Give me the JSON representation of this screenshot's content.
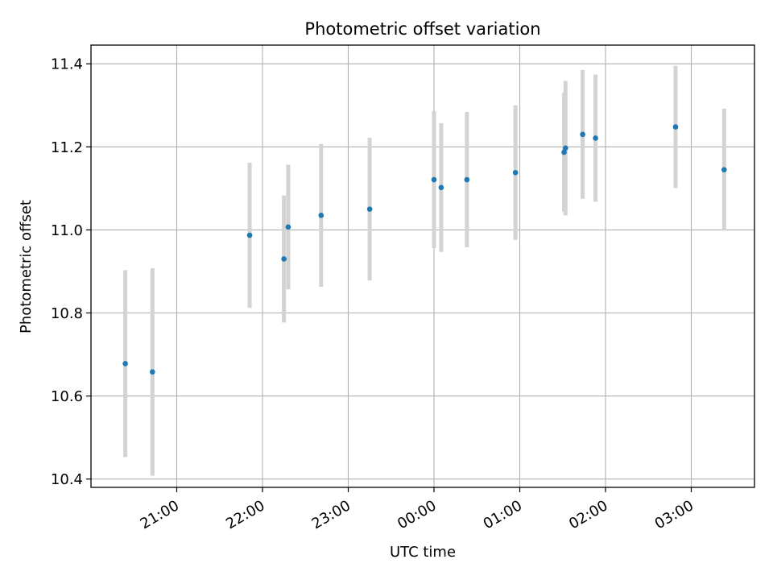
{
  "chart_data": {
    "type": "scatter",
    "title": "Photometric offset variation",
    "xlabel": "UTC time",
    "ylabel": "Photometric offset",
    "x_tick_labels": [
      "21:00",
      "22:00",
      "23:00",
      "00:00",
      "01:00",
      "02:00",
      "03:00"
    ],
    "y_tick_labels": [
      "10.4",
      "10.6",
      "10.8",
      "11.0",
      "11.2",
      "11.4"
    ],
    "ylim": [
      10.38,
      11.445
    ],
    "grid": true,
    "colors": {
      "points": "#1f77b4",
      "errorbars": "#d3d3d3",
      "grid": "#b0b0b0"
    },
    "points": [
      {
        "time": "20:24",
        "y": 10.678,
        "yerr": 0.225
      },
      {
        "time": "20:43",
        "y": 10.658,
        "yerr": 0.25
      },
      {
        "time": "21:51",
        "y": 10.987,
        "yerr": 0.175
      },
      {
        "time": "22:15",
        "y": 10.93,
        "yerr": 0.153
      },
      {
        "time": "22:18",
        "y": 11.007,
        "yerr": 0.15
      },
      {
        "time": "22:41",
        "y": 11.035,
        "yerr": 0.172
      },
      {
        "time": "23:15",
        "y": 11.05,
        "yerr": 0.172
      },
      {
        "time": "00:00",
        "y": 11.121,
        "yerr": 0.165
      },
      {
        "time": "00:05",
        "y": 11.102,
        "yerr": 0.155
      },
      {
        "time": "00:23",
        "y": 11.121,
        "yerr": 0.163
      },
      {
        "time": "00:57",
        "y": 11.138,
        "yerr": 0.162
      },
      {
        "time": "01:31",
        "y": 11.187,
        "yerr": 0.143
      },
      {
        "time": "01:32",
        "y": 11.197,
        "yerr": 0.162
      },
      {
        "time": "01:44",
        "y": 11.23,
        "yerr": 0.155
      },
      {
        "time": "01:53",
        "y": 11.221,
        "yerr": 0.153
      },
      {
        "time": "02:49",
        "y": 11.248,
        "yerr": 0.147
      },
      {
        "time": "03:23",
        "y": 11.145,
        "yerr": 0.147
      }
    ]
  }
}
